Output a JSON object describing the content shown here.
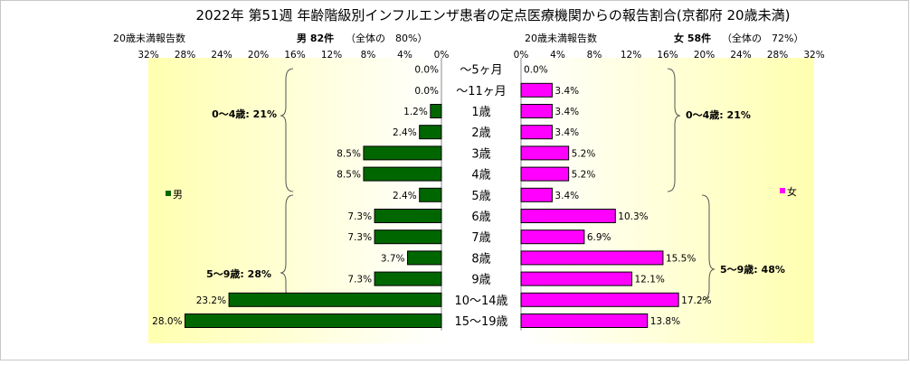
{
  "chart_data": {
    "type": "bar",
    "title": "2022年 第51週 年齢階級別インフルエンザ患者の定点医療機関からの報告割合(京都府 20歳未満)",
    "categories": [
      "～5ヶ月",
      "～11ヶ月",
      "1歳",
      "2歳",
      "3歳",
      "4歳",
      "5歳",
      "6歳",
      "7歳",
      "8歳",
      "9歳",
      "10～14歳",
      "15～19歳"
    ],
    "xlim": [
      0,
      32
    ],
    "ticks": [
      "0%",
      "4%",
      "8%",
      "12%",
      "16%",
      "20%",
      "24%",
      "28%",
      "32%"
    ],
    "grid": false,
    "left_panel": {
      "axis_title": "20歳未満報告数",
      "header_label": "男 82件",
      "header_share": "（全体の　80%）",
      "legend": "男",
      "color": "#006600",
      "values": [
        0.0,
        0.0,
        1.2,
        2.4,
        8.5,
        8.5,
        2.4,
        7.3,
        7.3,
        3.7,
        7.3,
        23.2,
        28.0
      ],
      "value_labels": [
        "0.0%",
        "0.0%",
        "1.2%",
        "2.4%",
        "8.5%",
        "8.5%",
        "2.4%",
        "7.3%",
        "7.3%",
        "3.7%",
        "7.3%",
        "23.2%",
        "28.0%"
      ],
      "group_labels": [
        "0～4歳: 21%",
        "5～9歳: 28%"
      ]
    },
    "right_panel": {
      "axis_title": "20歳未満報告数",
      "header_label": "女 58件",
      "header_share": "（全体の　72%）",
      "legend": "女",
      "color": "#ff00ff",
      "values": [
        0.0,
        3.4,
        3.4,
        3.4,
        5.2,
        5.2,
        3.4,
        10.3,
        6.9,
        15.5,
        12.1,
        17.2,
        13.8
      ],
      "value_labels": [
        "0.0%",
        "3.4%",
        "3.4%",
        "3.4%",
        "5.2%",
        "5.2%",
        "3.4%",
        "10.3%",
        "6.9%",
        "15.5%",
        "12.1%",
        "17.2%",
        "13.8%"
      ],
      "group_labels": [
        "0～4歳: 21%",
        "5～9歳: 48%"
      ]
    }
  }
}
